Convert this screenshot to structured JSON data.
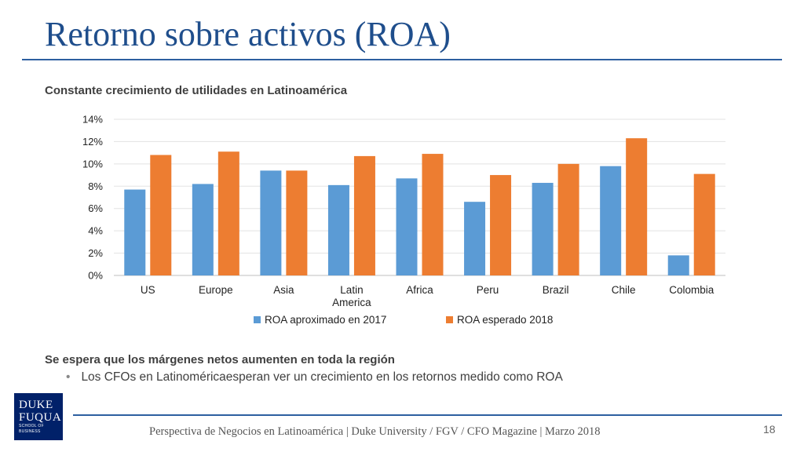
{
  "slide": {
    "title": "Retorno sobre activos (ROA)",
    "subtitle": "Constante crecimiento de utilidades en Latinoamérica",
    "section_heading": "Se espera que los márgenes netos aumenten en toda la región",
    "bullet": "Los CFOs en Latinoméricaesperan ver un crecimiento en los retornos medido como ROA",
    "footer": "Perspectiva de Negocios en Latinoamérica | Duke University / FGV / CFO Magazine | Marzo 2018",
    "page_number": "18",
    "logo": {
      "line1": "DUKE",
      "line2": "FUQUA",
      "line3": "SCHOOL OF BUSINESS"
    }
  },
  "chart_data": {
    "type": "bar",
    "categories": [
      "US",
      "Europe",
      "Asia",
      "Latin\nAmerica",
      "Africa",
      "Peru",
      "Brazil",
      "Chile",
      "Colombia"
    ],
    "series": [
      {
        "name": "ROA aproximado en 2017",
        "color": "#5b9bd5",
        "values": [
          7.7,
          8.2,
          9.4,
          8.1,
          8.7,
          6.6,
          8.3,
          9.8,
          1.8
        ]
      },
      {
        "name": "ROA esperado 2018",
        "color": "#ed7d31",
        "values": [
          10.8,
          11.1,
          9.4,
          10.7,
          10.9,
          9.0,
          10.0,
          12.3,
          9.1
        ]
      }
    ],
    "ylim": [
      0,
      14
    ],
    "yticks": [
      "0%",
      "2%",
      "4%",
      "6%",
      "8%",
      "10%",
      "12%",
      "14%"
    ],
    "grid": true,
    "legend_position": "bottom"
  }
}
